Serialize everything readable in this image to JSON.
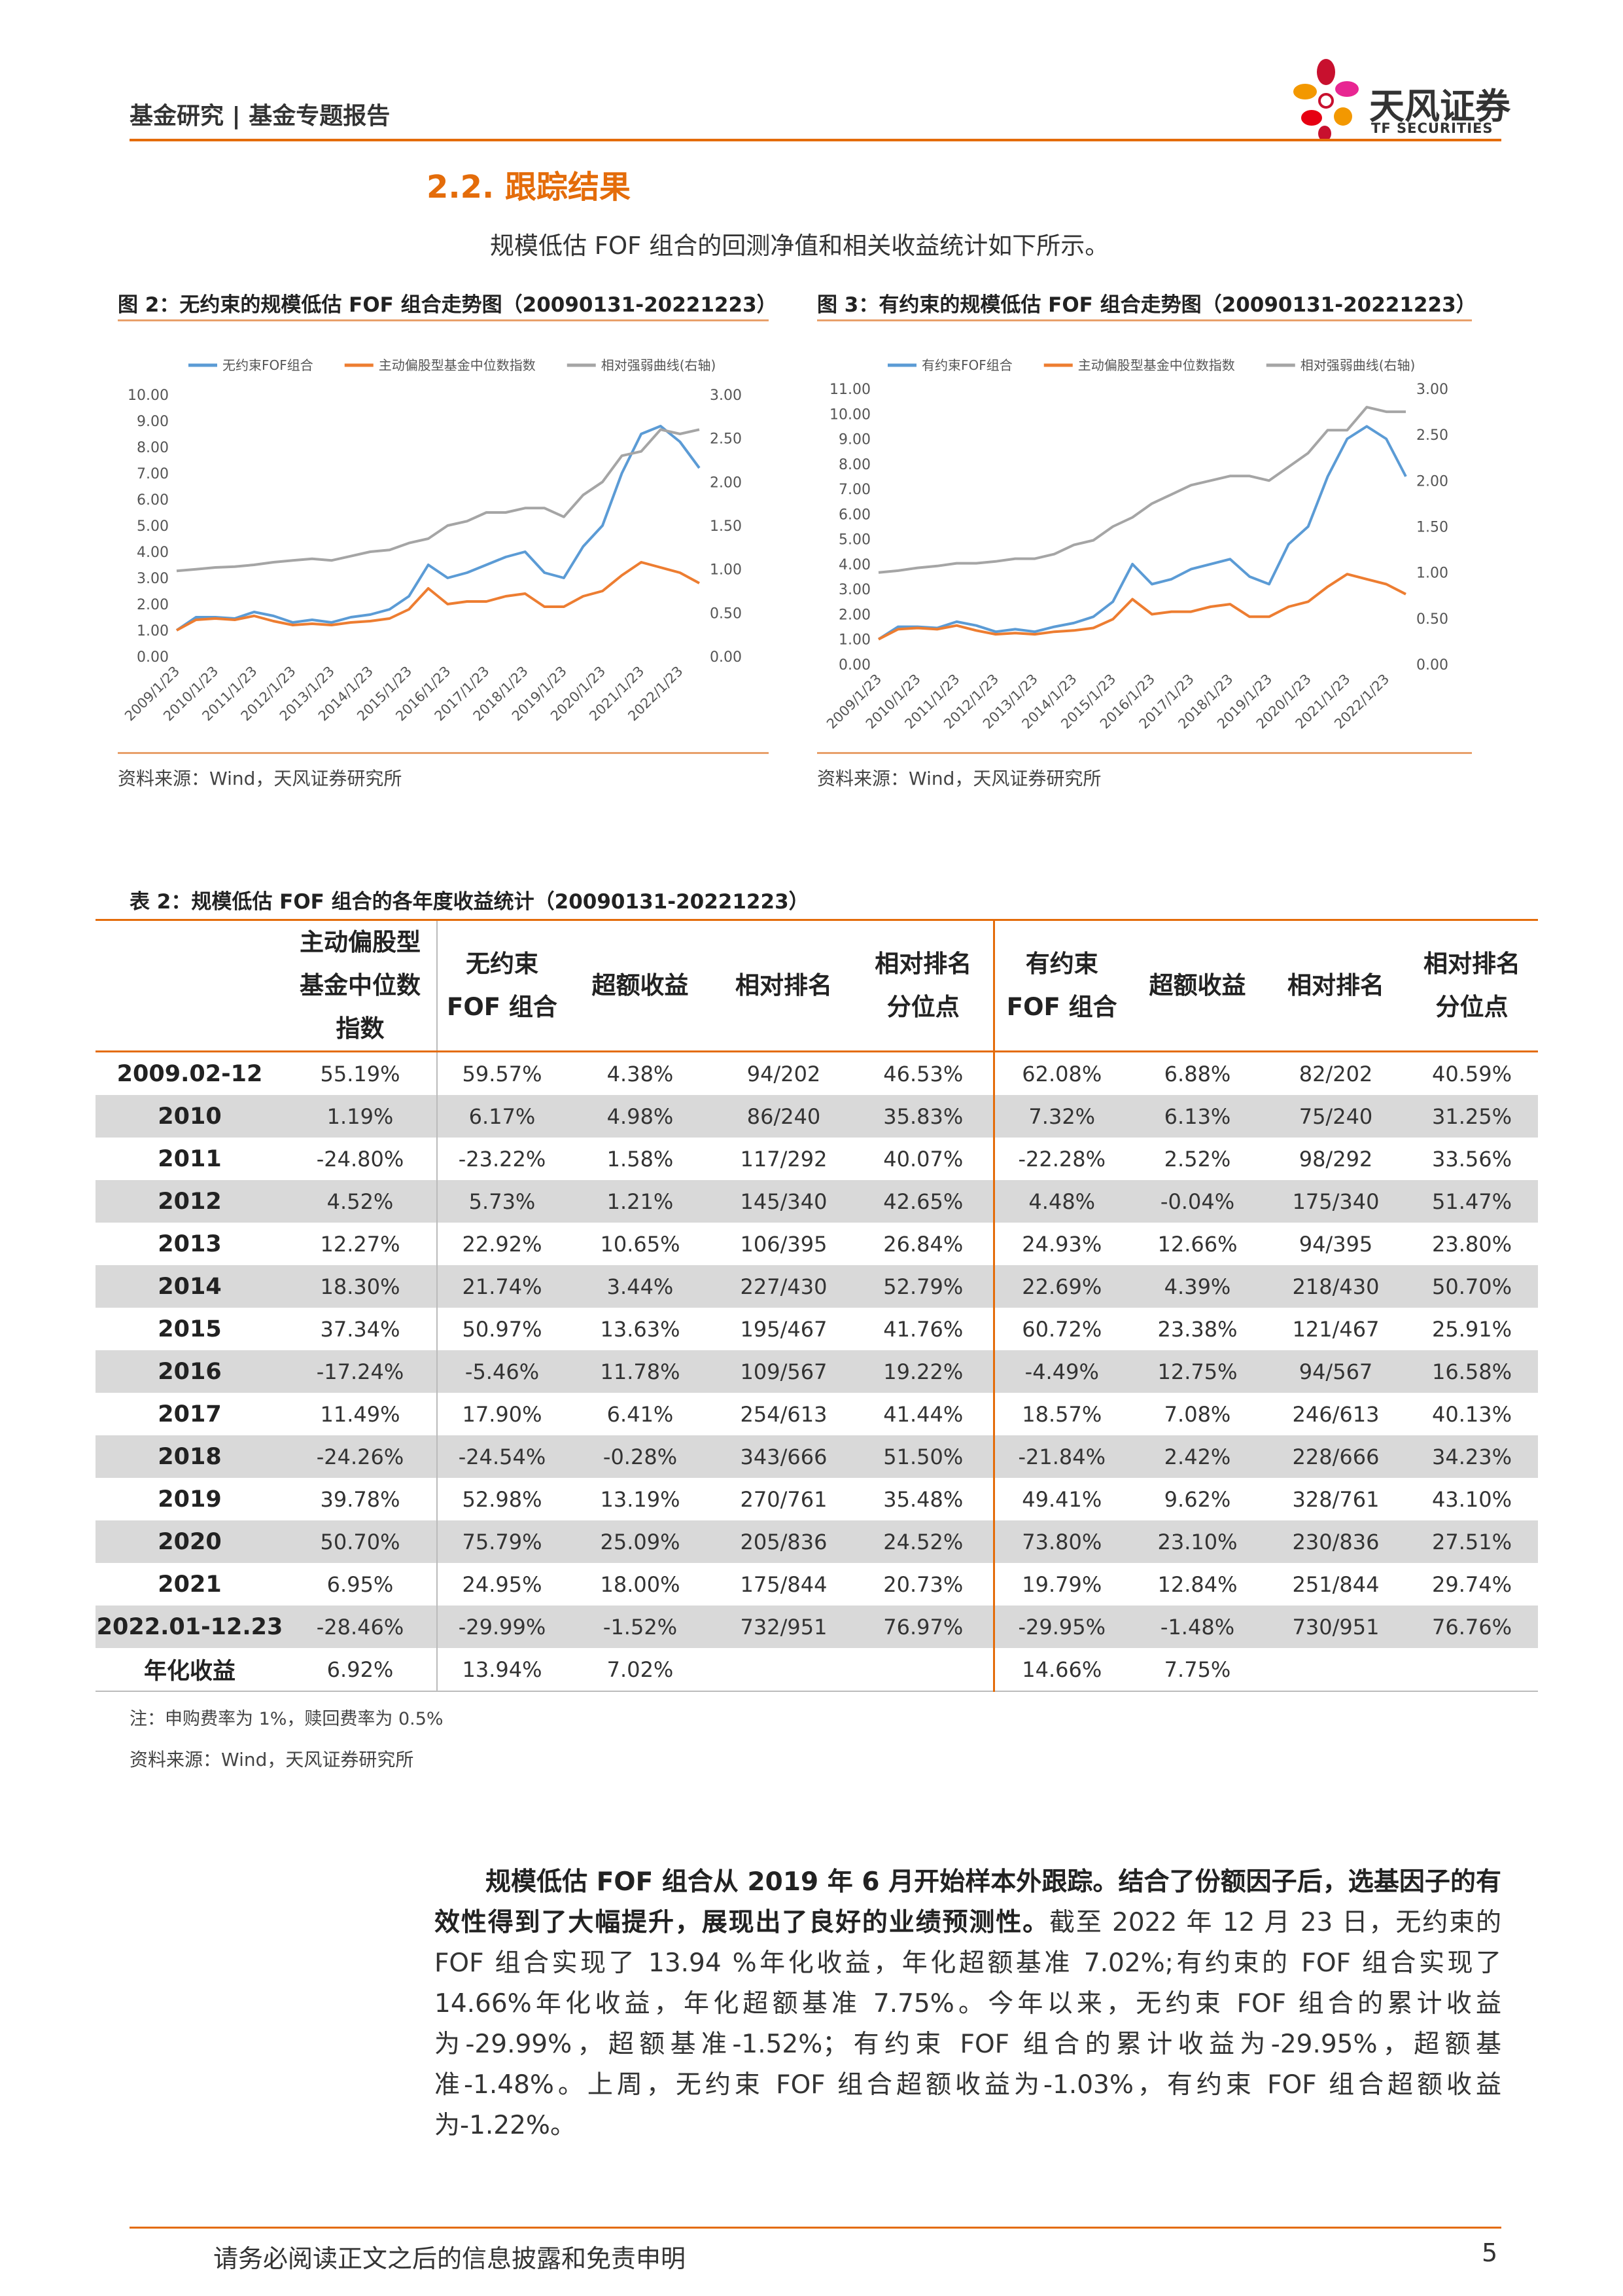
{
  "header": {
    "title": "基金研究 | 基金专题报告",
    "logo_name": "天风证券",
    "logo_sub": "TF SECURITIES"
  },
  "section_title": "2.2. 跟踪结果",
  "intro": "规模低估 FOF 组合的回测净值和相关收益统计如下所示。",
  "chart_data": [
    {
      "type": "line",
      "title": "图 2：无约束的规模低估 FOF 组合走势图（20090131-20221223）",
      "source": "资料来源：Wind，天风证券研究所",
      "categories": [
        "2009/1/23",
        null,
        "2010/1/23",
        null,
        "2011/1/23",
        null,
        "2012/1/23",
        null,
        "2013/1/23",
        null,
        "2014/1/23",
        null,
        "2015/1/23",
        null,
        "2016/1/23",
        null,
        "2017/1/23",
        null,
        "2018/1/23",
        null,
        "2019/1/23",
        null,
        "2020/1/23",
        null,
        "2021/1/23",
        null,
        "2022/1/23",
        null
      ],
      "series": [
        {
          "name": "无约束FOF组合",
          "color": "#5b9bd5",
          "values": [
            1.0,
            1.5,
            1.5,
            1.45,
            1.7,
            1.55,
            1.3,
            1.4,
            1.3,
            1.5,
            1.6,
            1.8,
            2.3,
            3.5,
            3.0,
            3.2,
            3.5,
            3.8,
            4.0,
            3.2,
            3.0,
            4.2,
            5.0,
            7.0,
            8.5,
            8.8,
            8.2,
            7.2
          ]
        },
        {
          "name": "主动偏股型基金中位数指数",
          "color": "#ed7d31",
          "values": [
            1.0,
            1.4,
            1.45,
            1.4,
            1.55,
            1.35,
            1.2,
            1.25,
            1.2,
            1.3,
            1.35,
            1.45,
            1.8,
            2.6,
            2.0,
            2.1,
            2.1,
            2.3,
            2.4,
            1.9,
            1.9,
            2.3,
            2.5,
            3.1,
            3.6,
            3.4,
            3.2,
            2.8
          ]
        },
        {
          "name": "相对强弱曲线(右轴)",
          "color": "#a5a5a5",
          "axis": "y2",
          "values": [
            0.98,
            1.0,
            1.02,
            1.03,
            1.05,
            1.08,
            1.1,
            1.12,
            1.1,
            1.15,
            1.2,
            1.22,
            1.3,
            1.35,
            1.5,
            1.55,
            1.65,
            1.65,
            1.7,
            1.7,
            1.6,
            1.85,
            2.0,
            2.3,
            2.35,
            2.6,
            2.55,
            2.6
          ]
        }
      ],
      "ylim": [
        0,
        10
      ],
      "yticks": [
        {
          "value": 0,
          "label": "0.00"
        },
        {
          "value": 1,
          "label": "1.00"
        },
        {
          "value": 2,
          "label": "2.00"
        },
        {
          "value": 3,
          "label": "3.00"
        },
        {
          "value": 4,
          "label": "4.00"
        },
        {
          "value": 5,
          "label": "5.00"
        },
        {
          "value": 6,
          "label": "6.00"
        },
        {
          "value": 7,
          "label": "7.00"
        },
        {
          "value": 8,
          "label": "8.00"
        },
        {
          "value": 9,
          "label": "9.00"
        },
        {
          "value": 10,
          "label": "10.00"
        }
      ],
      "y2lim": [
        0,
        3
      ],
      "y2ticks": [
        {
          "value": 0,
          "label": "0.00"
        },
        {
          "value": 0.5,
          "label": "0.50"
        },
        {
          "value": 1,
          "label": "1.00"
        },
        {
          "value": 1.5,
          "label": "1.50"
        },
        {
          "value": 2,
          "label": "2.00"
        },
        {
          "value": 2.5,
          "label": "2.50"
        },
        {
          "value": 3,
          "label": "3.00"
        }
      ],
      "legend": "top",
      "grid": false
    },
    {
      "type": "line",
      "title": "图 3：有约束的规模低估 FOF 组合走势图（20090131-20221223）",
      "source": "资料来源：Wind，天风证券研究所",
      "categories": [
        "2009/1/23",
        null,
        "2010/1/23",
        null,
        "2011/1/23",
        null,
        "2012/1/23",
        null,
        "2013/1/23",
        null,
        "2014/1/23",
        null,
        "2015/1/23",
        null,
        "2016/1/23",
        null,
        "2017/1/23",
        null,
        "2018/1/23",
        null,
        "2019/1/23",
        null,
        "2020/1/23",
        null,
        "2021/1/23",
        null,
        "2022/1/23",
        null
      ],
      "series": [
        {
          "name": "有约束FOF组合",
          "color": "#5b9bd5",
          "values": [
            1.0,
            1.5,
            1.5,
            1.45,
            1.7,
            1.55,
            1.3,
            1.4,
            1.3,
            1.5,
            1.65,
            1.9,
            2.5,
            4.0,
            3.2,
            3.4,
            3.8,
            4.0,
            4.2,
            3.5,
            3.2,
            4.8,
            5.5,
            7.5,
            9.0,
            9.5,
            9.0,
            7.5
          ]
        },
        {
          "name": "主动偏股型基金中位数指数",
          "color": "#ed7d31",
          "values": [
            1.0,
            1.4,
            1.45,
            1.4,
            1.55,
            1.35,
            1.2,
            1.25,
            1.2,
            1.3,
            1.35,
            1.45,
            1.8,
            2.6,
            2.0,
            2.1,
            2.1,
            2.3,
            2.4,
            1.9,
            1.9,
            2.3,
            2.5,
            3.1,
            3.6,
            3.4,
            3.2,
            2.8
          ]
        },
        {
          "name": "相对强弱曲线(右轴)",
          "color": "#a5a5a5",
          "axis": "y2",
          "values": [
            1.0,
            1.02,
            1.05,
            1.07,
            1.1,
            1.1,
            1.12,
            1.15,
            1.15,
            1.2,
            1.3,
            1.35,
            1.5,
            1.6,
            1.75,
            1.85,
            1.95,
            2.0,
            2.05,
            2.05,
            2.0,
            2.15,
            2.3,
            2.55,
            2.55,
            2.8,
            2.75,
            2.75
          ]
        }
      ],
      "ylim": [
        0,
        11
      ],
      "yticks": [
        {
          "value": 0,
          "label": "0.00"
        },
        {
          "value": 1,
          "label": "1.00"
        },
        {
          "value": 2,
          "label": "2.00"
        },
        {
          "value": 3,
          "label": "3.00"
        },
        {
          "value": 4,
          "label": "4.00"
        },
        {
          "value": 5,
          "label": "5.00"
        },
        {
          "value": 6,
          "label": "6.00"
        },
        {
          "value": 7,
          "label": "7.00"
        },
        {
          "value": 8,
          "label": "8.00"
        },
        {
          "value": 9,
          "label": "9.00"
        },
        {
          "value": 10,
          "label": "10.00"
        },
        {
          "value": 11,
          "label": "11.00"
        }
      ],
      "y2lim": [
        0,
        3
      ],
      "y2ticks": [
        {
          "value": 0,
          "label": "0.00"
        },
        {
          "value": 0.5,
          "label": "0.50"
        },
        {
          "value": 1,
          "label": "1.00"
        },
        {
          "value": 1.5,
          "label": "1.50"
        },
        {
          "value": 2,
          "label": "2.00"
        },
        {
          "value": 2.5,
          "label": "2.50"
        },
        {
          "value": 3,
          "label": "3.00"
        }
      ],
      "legend": "top",
      "grid": false
    }
  ],
  "table": {
    "title": "表 2：规模低估 FOF 组合的各年度收益统计（20090131-20221223）",
    "headers": [
      [
        "主动偏股型",
        "基金中位数",
        "指数"
      ],
      [
        "无约束",
        "FOF 组合"
      ],
      [
        "超额收益"
      ],
      [
        "相对排名"
      ],
      [
        "相对排名",
        "分位点"
      ],
      [
        "有约束",
        "FOF 组合"
      ],
      [
        "超额收益"
      ],
      [
        "相对排名"
      ],
      [
        "相对排名",
        "分位点"
      ]
    ],
    "rows": [
      [
        "2009.02-12",
        "55.19%",
        "59.57%",
        "4.38%",
        "94/202",
        "46.53%",
        "62.08%",
        "6.88%",
        "82/202",
        "40.59%"
      ],
      [
        "2010",
        "1.19%",
        "6.17%",
        "4.98%",
        "86/240",
        "35.83%",
        "7.32%",
        "6.13%",
        "75/240",
        "31.25%"
      ],
      [
        "2011",
        "-24.80%",
        "-23.22%",
        "1.58%",
        "117/292",
        "40.07%",
        "-22.28%",
        "2.52%",
        "98/292",
        "33.56%"
      ],
      [
        "2012",
        "4.52%",
        "5.73%",
        "1.21%",
        "145/340",
        "42.65%",
        "4.48%",
        "-0.04%",
        "175/340",
        "51.47%"
      ],
      [
        "2013",
        "12.27%",
        "22.92%",
        "10.65%",
        "106/395",
        "26.84%",
        "24.93%",
        "12.66%",
        "94/395",
        "23.80%"
      ],
      [
        "2014",
        "18.30%",
        "21.74%",
        "3.44%",
        "227/430",
        "52.79%",
        "22.69%",
        "4.39%",
        "218/430",
        "50.70%"
      ],
      [
        "2015",
        "37.34%",
        "50.97%",
        "13.63%",
        "195/467",
        "41.76%",
        "60.72%",
        "23.38%",
        "121/467",
        "25.91%"
      ],
      [
        "2016",
        "-17.24%",
        "-5.46%",
        "11.78%",
        "109/567",
        "19.22%",
        "-4.49%",
        "12.75%",
        "94/567",
        "16.58%"
      ],
      [
        "2017",
        "11.49%",
        "17.90%",
        "6.41%",
        "254/613",
        "41.44%",
        "18.57%",
        "7.08%",
        "246/613",
        "40.13%"
      ],
      [
        "2018",
        "-24.26%",
        "-24.54%",
        "-0.28%",
        "343/666",
        "51.50%",
        "-21.84%",
        "2.42%",
        "228/666",
        "34.23%"
      ],
      [
        "2019",
        "39.78%",
        "52.98%",
        "13.19%",
        "270/761",
        "35.48%",
        "49.41%",
        "9.62%",
        "328/761",
        "43.10%"
      ],
      [
        "2020",
        "50.70%",
        "75.79%",
        "25.09%",
        "205/836",
        "24.52%",
        "73.80%",
        "23.10%",
        "230/836",
        "27.51%"
      ],
      [
        "2021",
        "6.95%",
        "24.95%",
        "18.00%",
        "175/844",
        "20.73%",
        "19.79%",
        "12.84%",
        "251/844",
        "29.74%"
      ],
      [
        "2022.01-12.23",
        "-28.46%",
        "-29.99%",
        "-1.52%",
        "732/951",
        "76.97%",
        "-29.95%",
        "-1.48%",
        "730/951",
        "76.76%"
      ],
      [
        "年化收益",
        "6.92%",
        "13.94%",
        "7.02%",
        null,
        null,
        "14.66%",
        "7.75%",
        null,
        null
      ]
    ],
    "note": "注：申购费率为 1%，赎回费率为 0.5%",
    "source": "资料来源：Wind，天风证券研究所"
  },
  "paragraph": {
    "bold": "规模低估 FOF 组合从 2019 年 6 月开始样本外跟踪。结合了份额因子后，选基因子的有效性得到了大幅提升，展现出了良好的业绩预测性。",
    "normal": "截至 2022 年 12 月 23 日，无约束的 FOF 组合实现了 13.94 %年化收益，年化超额基准 7.02%;有约束的 FOF 组合实现了 14.66%年化收益，年化超额基准 7.75%。今年以来，无约束 FOF 组合的累计收益为-29.99%，超额基准-1.52%；有约束 FOF 组合的累计收益为-29.95%，超额基准-1.48%。上周，无约束 FOF 组合超额收益为-1.03%，有约束 FOF 组合超额收益为-1.22%。"
  },
  "footer": {
    "disclaimer": "请务必阅读正文之后的信息披露和免责申明",
    "page": "5"
  }
}
